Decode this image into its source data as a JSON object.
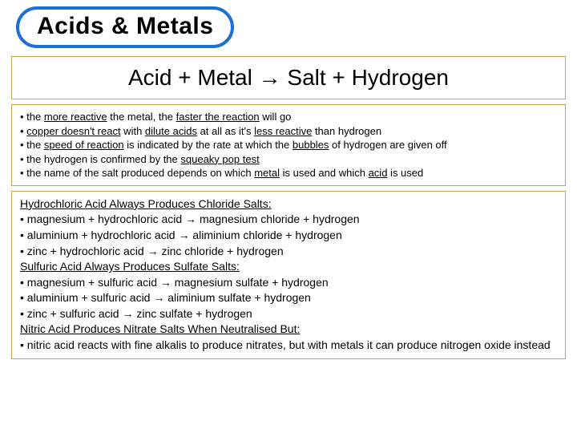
{
  "title": "Acids & Metals",
  "equation": "Acid + Metal → Salt + Hydrogen",
  "bullets": {
    "b1_a": "• the ",
    "b1_b": "more reactive",
    "b1_c": " the metal, the ",
    "b1_d": "faster the reaction",
    "b1_e": " will go",
    "b2_a": "• ",
    "b2_b": "copper doesn't react",
    "b2_c": " with ",
    "b2_d": "dilute acids",
    "b2_e": " at all as it's ",
    "b2_f": "less reactive",
    "b2_g": " than hydrogen",
    "b3_a": "• the ",
    "b3_b": "speed of reaction",
    "b3_c": " is indicated by the rate at which the ",
    "b3_d": "bubbles",
    "b3_e": " of hydrogen are given off",
    "b4_a": "• the hydrogen is confirmed by the ",
    "b4_b": "squeaky pop test",
    "b5_a": "• the name of the salt produced depends on which ",
    "b5_b": "metal",
    "b5_c": " is used and which ",
    "b5_d": "acid",
    "b5_e": " is used"
  },
  "examples": {
    "h1": "Hydrochloric Acid Always Produces Chloride Salts:",
    "r1": "• magnesium + hydrochloric acid → magnesium chloride + hydrogen",
    "r2": "• aluminium + hydrochloric acid → aliminium chloride + hydrogen",
    "r3": "• zinc + hydrochloric acid → zinc chloride + hydrogen",
    "h2": "Sulfuric Acid Always Produces Sulfate Salts:",
    "r4": "• magnesium + sulfuric acid → magnesium sulfate + hydrogen",
    "r5": "• aluminium + sulfuric acid → aliminium sulfate + hydrogen",
    "r6": "• zinc + sulfuric acid → zinc sulfate + hydrogen",
    "h3": "Nitric Acid Produces Nitrate Salts When Neutralised But:",
    "r7": "• nitric acid reacts with fine alkalis to produce nitrates, but with metals it can produce nitrogen oxide instead"
  }
}
